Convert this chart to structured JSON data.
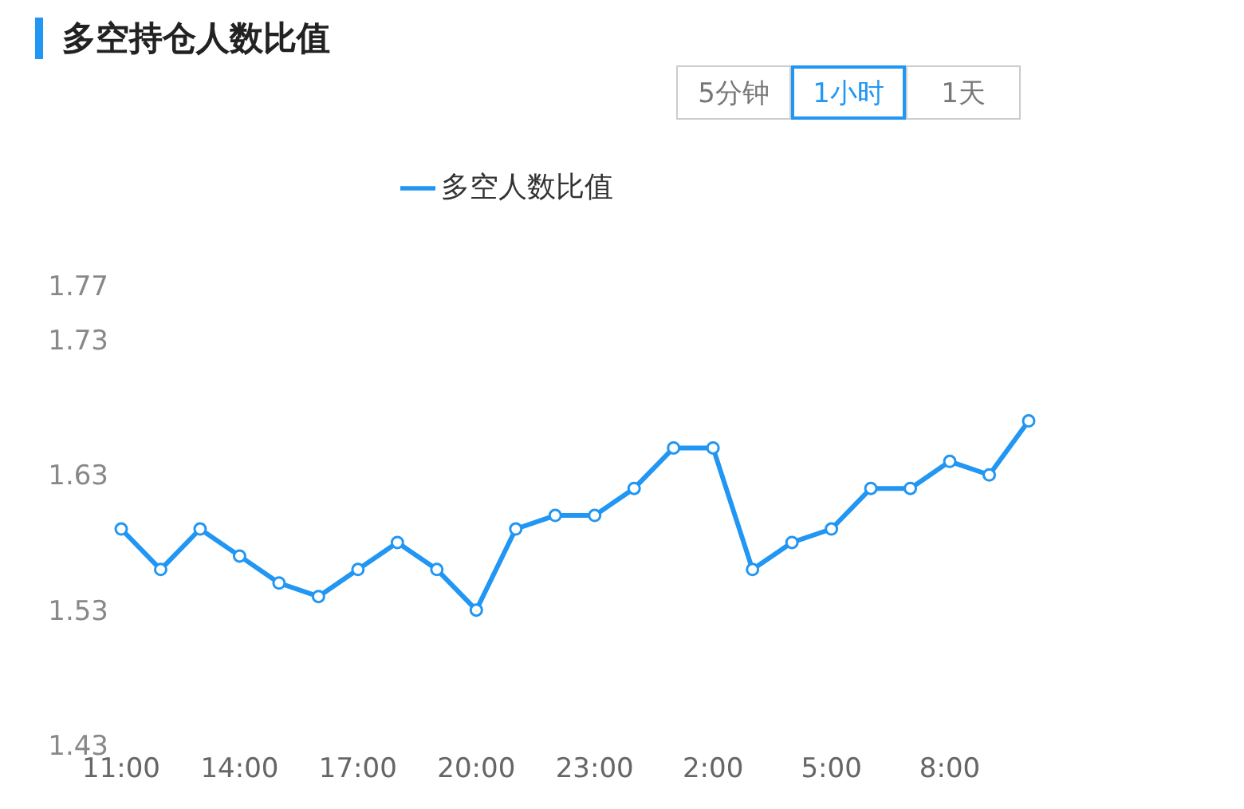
{
  "chart_data": {
    "type": "line",
    "title": "多空持仓人数比值",
    "annotations": [
      "5分钟",
      "1小时",
      "1天"
    ],
    "categories": [
      "11:00",
      null,
      null,
      "14:00",
      null,
      null,
      "17:00",
      null,
      null,
      "20:00",
      null,
      null,
      "23:00",
      null,
      null,
      "2:00",
      null,
      null,
      "5:00",
      null,
      null,
      "8:00",
      null,
      null
    ],
    "series": [
      {
        "name": "多空人数比值",
        "color": "#2196f3",
        "values": [
          1.59,
          1.56,
          1.59,
          1.57,
          1.55,
          1.54,
          1.56,
          1.58,
          1.56,
          1.53,
          1.59,
          1.6,
          1.6,
          1.62,
          1.65,
          1.65,
          1.56,
          1.58,
          1.59,
          1.62,
          1.62,
          1.64,
          1.63,
          1.67
        ]
      }
    ],
    "ylim": [
      1.43,
      1.77
    ],
    "yticks": [
      1.43,
      1.53,
      1.63,
      1.73,
      1.77
    ],
    "grid": false,
    "legend": "top",
    "marker": "circle",
    "line_style": "solid"
  }
}
